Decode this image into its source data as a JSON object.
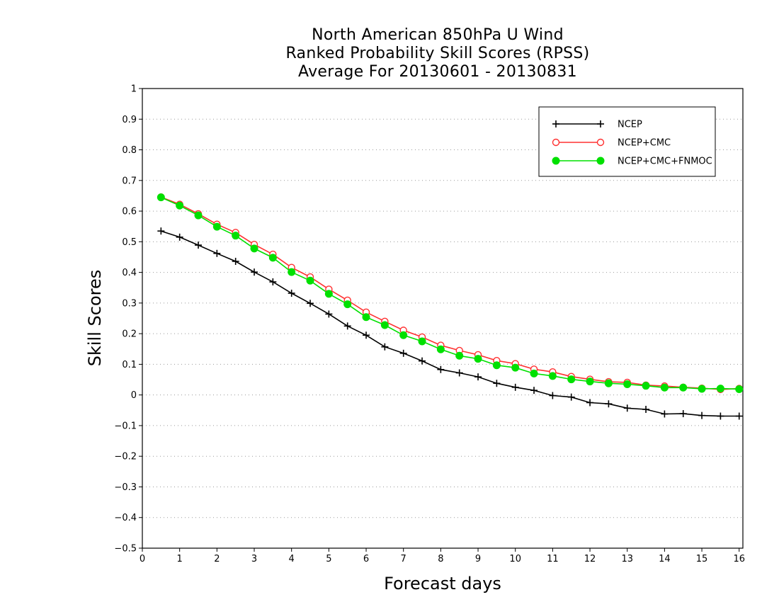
{
  "chart_data": {
    "type": "line",
    "title": [
      "North American 850hPa U Wind",
      "Ranked Probability Skill Scores (RPSS)",
      "Average For 20130601 - 20130831"
    ],
    "xlabel": "Forecast days",
    "ylabel": "Skill Scores",
    "xlim": [
      0,
      16.1
    ],
    "ylim": [
      -0.5,
      1
    ],
    "xticks": [
      "0",
      "1",
      "2",
      "3",
      "4",
      "5",
      "6",
      "7",
      "8",
      "9",
      "10",
      "11",
      "12",
      "13",
      "14",
      "15",
      "16"
    ],
    "yticks": [
      "1",
      "0.9",
      "0.8",
      "0.7",
      "0.6",
      "0.5",
      "0.4",
      "0.3",
      "0.2",
      "0.1",
      "0",
      "−0.1",
      "−0.2",
      "−0.3",
      "−0.4",
      "−0.5"
    ],
    "grid": "horizontal dotted",
    "legend_position": "top-right",
    "x": [
      0.5,
      1.0,
      1.5,
      2.0,
      2.5,
      3.0,
      3.5,
      4.0,
      4.5,
      5.0,
      5.5,
      6.0,
      6.5,
      7.0,
      7.5,
      8.0,
      8.5,
      9.0,
      9.5,
      10.0,
      10.5,
      11.0,
      11.5,
      12.0,
      12.5,
      13.0,
      13.5,
      14.0,
      14.5,
      15.0,
      15.5,
      16.0
    ],
    "series": [
      {
        "name": "NCEP",
        "color": "#000000",
        "marker": "plus",
        "values": [
          0.535,
          0.515,
          0.489,
          0.462,
          0.436,
          0.401,
          0.369,
          0.332,
          0.299,
          0.264,
          0.225,
          0.195,
          0.157,
          0.136,
          0.111,
          0.083,
          0.072,
          0.059,
          0.038,
          0.025,
          0.015,
          -0.002,
          -0.007,
          -0.025,
          -0.029,
          -0.043,
          -0.047,
          -0.062,
          -0.061,
          -0.067,
          -0.069,
          -0.069
        ]
      },
      {
        "name": "NCEP+CMC",
        "color": "#ff3030",
        "marker": "open-circle",
        "values": [
          0.646,
          0.622,
          0.591,
          0.557,
          0.53,
          0.491,
          0.459,
          0.416,
          0.385,
          0.345,
          0.309,
          0.27,
          0.24,
          0.211,
          0.189,
          0.162,
          0.145,
          0.131,
          0.112,
          0.102,
          0.084,
          0.075,
          0.06,
          0.051,
          0.043,
          0.041,
          0.032,
          0.029,
          0.025,
          0.022,
          0.018,
          0.021
        ]
      },
      {
        "name": "NCEP+CMC+FNMOC",
        "color": "#00e000",
        "marker": "filled-circle",
        "values": [
          0.645,
          0.618,
          0.586,
          0.549,
          0.52,
          0.478,
          0.448,
          0.401,
          0.373,
          0.33,
          0.296,
          0.254,
          0.228,
          0.195,
          0.175,
          0.149,
          0.128,
          0.118,
          0.097,
          0.089,
          0.07,
          0.062,
          0.051,
          0.044,
          0.038,
          0.035,
          0.03,
          0.024,
          0.024,
          0.02,
          0.021,
          0.019
        ]
      }
    ]
  }
}
